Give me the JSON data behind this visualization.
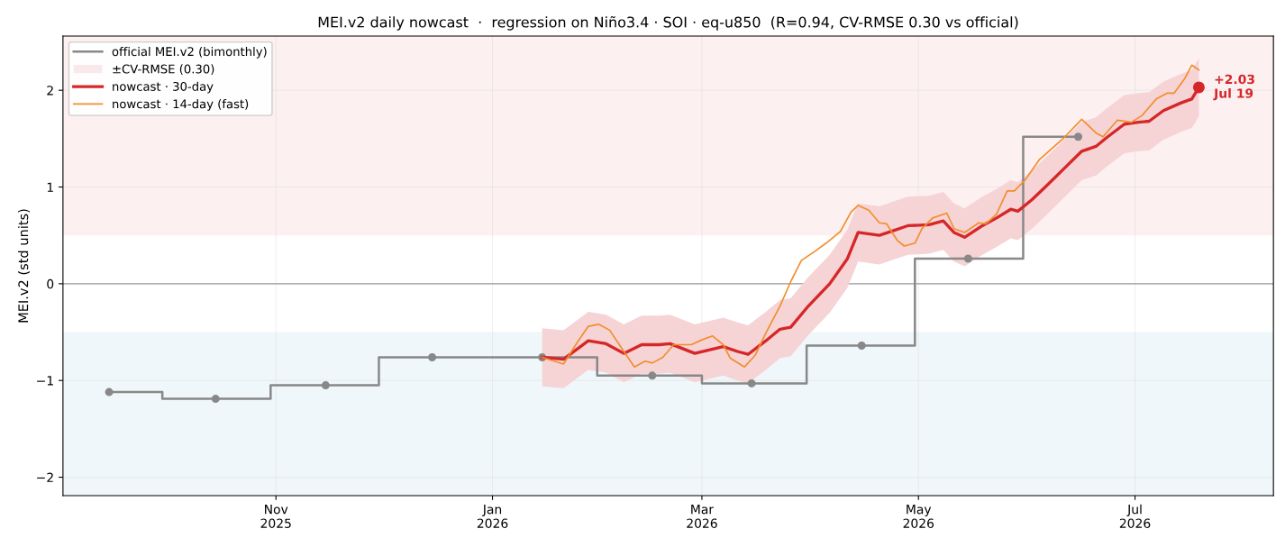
{
  "chart_data": {
    "type": "line",
    "title": "MEI.v2 daily nowcast  ·  regression on Niño3.4 · SOI · eq-u850  (R=0.94, CV-RMSE 0.30 vs official)",
    "ylabel": "MEI.v2 (std units)",
    "xlim": [
      "2025-09-02",
      "2026-08-09"
    ],
    "xticks": [
      {
        "value": "2025-11-01",
        "label": "Nov\n2025"
      },
      {
        "value": "2026-01-01",
        "label": "Jan\n2026"
      },
      {
        "value": "2026-03-01",
        "label": "Mar\n2026"
      },
      {
        "value": "2026-05-01",
        "label": "May\n2026"
      },
      {
        "value": "2026-07-01",
        "label": "Jul\n2026"
      }
    ],
    "ylim": [
      -2.19,
      2.56
    ],
    "yticks": [
      {
        "value": -2,
        "label": "−2"
      },
      {
        "value": -1,
        "label": "−1"
      },
      0,
      1,
      2
    ],
    "grid": true,
    "legend": "top left",
    "bands": [
      {
        "axis": "y",
        "from": 0.5,
        "to": 2.56,
        "color": "#fcf0f1"
      },
      {
        "axis": "y",
        "from": -2.19,
        "to": -0.5,
        "color": "#eff7fa"
      }
    ],
    "ref_lines": [
      {
        "axis": "y",
        "value": 0,
        "color": "#999999"
      }
    ],
    "series": [
      {
        "name": "official MEI.v2 (bimonthly)",
        "type": "step",
        "marker": "circle",
        "color": "#888888",
        "x": [
          "2025-09-15",
          "2025-10-15",
          "2025-11-15",
          "2025-12-15",
          "2026-01-15",
          "2026-02-15",
          "2026-03-15",
          "2026-04-15",
          "2026-05-15",
          "2026-06-15"
        ],
        "values": [
          -1.12,
          -1.19,
          -1.05,
          -0.76,
          -0.76,
          -0.95,
          -1.03,
          -0.64,
          0.26,
          1.52
        ]
      },
      {
        "name": "±CV-RMSE (0.30)",
        "type": "area",
        "color": "#f6d3d5"
      },
      {
        "name": "nowcast · 30-day",
        "color": "#d62728",
        "lower": [
          -1.06,
          -1.08,
          -0.89,
          -0.92,
          -1.02,
          -0.93,
          -0.93,
          -0.92,
          -1.02,
          -0.95,
          -1.0,
          -1.03,
          -0.89,
          -0.77,
          -0.75,
          -0.53,
          -0.3,
          -0.04,
          0.23,
          0.2,
          0.25,
          0.3,
          0.31,
          0.35,
          0.23,
          0.18,
          0.3,
          0.38,
          0.47,
          0.45,
          0.57,
          0.71,
          0.89,
          1.07,
          1.12,
          1.21,
          1.35,
          1.37,
          1.38,
          1.49,
          1.57,
          1.61,
          1.73
        ],
        "upper": [
          -0.46,
          -0.48,
          -0.29,
          -0.32,
          -0.42,
          -0.33,
          -0.33,
          -0.32,
          -0.42,
          -0.35,
          -0.4,
          -0.43,
          -0.29,
          -0.17,
          -0.15,
          0.07,
          0.3,
          0.56,
          0.83,
          0.8,
          0.85,
          0.9,
          0.91,
          0.95,
          0.83,
          0.78,
          0.9,
          0.98,
          1.07,
          1.05,
          1.17,
          1.31,
          1.49,
          1.67,
          1.72,
          1.81,
          1.95,
          1.97,
          1.98,
          2.09,
          2.17,
          2.21,
          2.33
        ],
        "x": [
          "2026-01-15",
          "2026-01-21",
          "2026-01-28",
          "2026-02-02",
          "2026-02-07",
          "2026-02-12",
          "2026-02-17",
          "2026-02-20",
          "2026-02-27",
          "2026-03-07",
          "2026-03-11",
          "2026-03-14",
          "2026-03-19",
          "2026-03-23",
          "2026-03-26",
          "2026-03-31",
          "2026-04-06",
          "2026-04-11",
          "2026-04-14",
          "2026-04-20",
          "2026-04-24",
          "2026-04-28",
          "2026-05-04",
          "2026-05-08",
          "2026-05-11",
          "2026-05-14",
          "2026-05-19",
          "2026-05-23",
          "2026-05-27",
          "2026-05-29",
          "2026-06-02",
          "2026-06-06",
          "2026-06-11",
          "2026-06-16",
          "2026-06-20",
          "2026-06-23",
          "2026-06-28",
          "2026-07-02",
          "2026-07-05",
          "2026-07-09",
          "2026-07-14",
          "2026-07-17",
          "2026-07-19"
        ],
        "values": [
          -0.76,
          -0.78,
          -0.59,
          -0.62,
          -0.72,
          -0.63,
          -0.63,
          -0.62,
          -0.72,
          -0.65,
          -0.7,
          -0.73,
          -0.59,
          -0.47,
          -0.45,
          -0.23,
          0.0,
          0.26,
          0.53,
          0.5,
          0.55,
          0.6,
          0.61,
          0.65,
          0.53,
          0.48,
          0.6,
          0.68,
          0.77,
          0.75,
          0.87,
          1.01,
          1.19,
          1.37,
          1.42,
          1.51,
          1.65,
          1.67,
          1.68,
          1.79,
          1.87,
          1.91,
          2.03
        ]
      },
      {
        "name": "nowcast · 14-day (fast)",
        "color": "#f28e2b",
        "x": [
          "2026-01-15",
          "2026-01-21",
          "2026-01-25",
          "2026-01-28",
          "2026-01-31",
          "2026-02-03",
          "2026-02-07",
          "2026-02-10",
          "2026-02-13",
          "2026-02-15",
          "2026-02-18",
          "2026-02-21",
          "2026-02-26",
          "2026-03-01",
          "2026-03-04",
          "2026-03-07",
          "2026-03-09",
          "2026-03-13",
          "2026-03-16",
          "2026-03-19",
          "2026-03-23",
          "2026-03-26",
          "2026-03-29",
          "2026-04-02",
          "2026-04-05",
          "2026-04-09",
          "2026-04-12",
          "2026-04-14",
          "2026-04-17",
          "2026-04-20",
          "2026-04-22",
          "2026-04-25",
          "2026-04-27",
          "2026-04-30",
          "2026-05-02",
          "2026-05-05",
          "2026-05-09",
          "2026-05-11",
          "2026-05-14",
          "2026-05-18",
          "2026-05-20",
          "2026-05-23",
          "2026-05-26",
          "2026-05-28",
          "2026-05-31",
          "2026-06-04",
          "2026-06-11",
          "2026-06-16",
          "2026-06-20",
          "2026-06-22",
          "2026-06-26",
          "2026-06-30",
          "2026-07-03",
          "2026-07-07",
          "2026-07-10",
          "2026-07-12",
          "2026-07-15",
          "2026-07-17",
          "2026-07-19"
        ],
        "values": [
          -0.76,
          -0.83,
          -0.6,
          -0.44,
          -0.42,
          -0.48,
          -0.7,
          -0.86,
          -0.8,
          -0.82,
          -0.76,
          -0.63,
          -0.63,
          -0.58,
          -0.54,
          -0.63,
          -0.77,
          -0.86,
          -0.74,
          -0.51,
          -0.23,
          0.02,
          0.24,
          0.34,
          0.42,
          0.54,
          0.74,
          0.81,
          0.76,
          0.63,
          0.62,
          0.45,
          0.39,
          0.42,
          0.57,
          0.68,
          0.73,
          0.57,
          0.53,
          0.63,
          0.62,
          0.72,
          0.96,
          0.96,
          1.07,
          1.28,
          1.51,
          1.7,
          1.56,
          1.52,
          1.69,
          1.67,
          1.74,
          1.91,
          1.97,
          1.97,
          2.12,
          2.26,
          2.21
        ]
      },
      {
        "type": "scatter",
        "color": "#d62728",
        "x": [
          "2026-07-19"
        ],
        "values": [
          2.03
        ]
      }
    ],
    "annotations": [
      {
        "text": "+2.03\nJul 19",
        "x": "2026-07-19",
        "y": 2.03
      }
    ]
  }
}
